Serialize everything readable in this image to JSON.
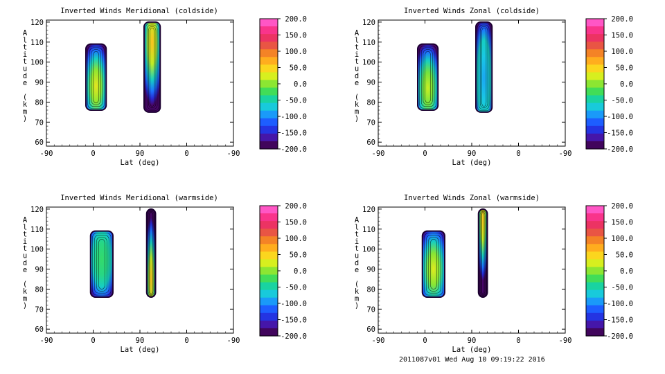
{
  "footer": "2011087v01 Wed Aug 10 09:19:22 2016",
  "chart_data": [
    {
      "type": "heatmap",
      "title": "Inverted Winds Meridional (coldside)",
      "xlabel": "Lat (deg)",
      "ylabel": "Altitude (km)",
      "x_ticks": [
        "-90",
        "0",
        "90",
        "0",
        "-90"
      ],
      "y_ticks": [
        "60",
        "70",
        "80",
        "90",
        "100",
        "110",
        "120"
      ],
      "ylim": [
        58,
        121
      ],
      "colorbar": {
        "ticks": [
          "200.0",
          "150.0",
          "100.0",
          "50.0",
          "0.0",
          "-50.0",
          "-100.0",
          "-150.0",
          "-200.0"
        ],
        "range": [
          -200,
          200
        ]
      },
      "regions": [
        {
          "x_range": [
            -14,
            25
          ],
          "alt_range": [
            76,
            109
          ],
          "peak_value": 35,
          "peak_alt": 88
        },
        {
          "x_range": [
            -141,
            -172
          ],
          "alt_range": [
            75,
            120
          ],
          "peak_value": 60,
          "peak_alt": 110
        }
      ]
    },
    {
      "type": "heatmap",
      "title": "Inverted Winds Zonal (coldside)",
      "xlabel": "Lat (deg)",
      "ylabel": "Altitude (km)",
      "x_ticks": [
        "-90",
        "0",
        "90",
        "0",
        "-90"
      ],
      "y_ticks": [
        "60",
        "70",
        "80",
        "90",
        "100",
        "110",
        "120"
      ],
      "ylim": [
        58,
        121
      ],
      "colorbar": {
        "ticks": [
          "200.0",
          "150.0",
          "100.0",
          "50.0",
          "0.0",
          "-50.0",
          "-100.0",
          "-150.0",
          "-200.0"
        ],
        "range": [
          -200,
          200
        ]
      },
      "regions": [
        {
          "x_range": [
            -14,
            25
          ],
          "alt_range": [
            76,
            109
          ],
          "peak_value": 20,
          "peak_alt": 87
        },
        {
          "x_range": [
            -141,
            -172
          ],
          "alt_range": [
            75,
            120
          ],
          "peak_value": -90,
          "peak_alt": 92
        }
      ]
    },
    {
      "type": "heatmap",
      "title": "Inverted Winds Meridional (warmside)",
      "xlabel": "Lat (deg)",
      "ylabel": "Altitude (km)",
      "x_ticks": [
        "-90",
        "0",
        "90",
        "0",
        "-90"
      ],
      "y_ticks": [
        "60",
        "70",
        "80",
        "90",
        "100",
        "110",
        "120"
      ],
      "ylim": [
        58,
        121
      ],
      "colorbar": {
        "ticks": [
          "200.0",
          "150.0",
          "100.0",
          "50.0",
          "0.0",
          "-50.0",
          "-100.0",
          "-150.0",
          "-200.0"
        ],
        "range": [
          -200,
          200
        ]
      },
      "regions": [
        {
          "x_range": [
            -5,
            38
          ],
          "alt_range": [
            76,
            109
          ],
          "peak_value": -30,
          "peak_alt": 95
        },
        {
          "x_range": [
            -150,
            -167
          ],
          "alt_range": [
            76,
            120
          ],
          "peak_value": 60,
          "peak_alt": 85
        }
      ]
    },
    {
      "type": "heatmap",
      "title": "Inverted Winds Zonal (warmside)",
      "xlabel": "Lat (deg)",
      "ylabel": "Altitude (km)",
      "x_ticks": [
        "-90",
        "0",
        "90",
        "0",
        "-90"
      ],
      "y_ticks": [
        "60",
        "70",
        "80",
        "90",
        "100",
        "110",
        "120"
      ],
      "ylim": [
        58,
        121
      ],
      "colorbar": {
        "ticks": [
          "200.0",
          "150.0",
          "100.0",
          "50.0",
          "0.0",
          "-50.0",
          "-100.0",
          "-150.0",
          "-200.0"
        ],
        "range": [
          -200,
          200
        ]
      },
      "regions": [
        {
          "x_range": [
            -5,
            38
          ],
          "alt_range": [
            76,
            109
          ],
          "peak_value": 30,
          "peak_alt": 90
        },
        {
          "x_range": [
            -150,
            -167
          ],
          "alt_range": [
            76,
            120
          ],
          "peak_value": 60,
          "peak_alt": 115
        }
      ]
    }
  ]
}
